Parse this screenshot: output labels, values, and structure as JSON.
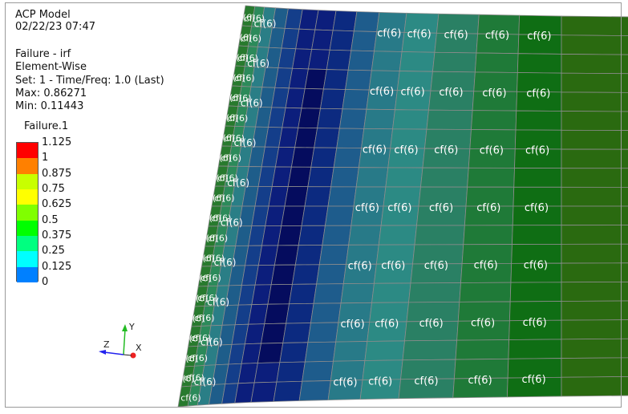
{
  "info": {
    "model": "ACP Model",
    "timestamp": "02/22/23 07:47",
    "result": "Failure - irf",
    "scope": "Element-Wise",
    "set": "Set: 1 - Time/Freq: 1.0 (Last)",
    "max": "Max: 0.86271",
    "min": "Min: 0.11443"
  },
  "legend": {
    "title": "Failure.1",
    "levels": [
      {
        "label": "1.125",
        "color": "#ff0000"
      },
      {
        "label": "1",
        "color": "#ff8000"
      },
      {
        "label": "0.875",
        "color": "#c8ff00"
      },
      {
        "label": "0.75",
        "color": "#ffff00"
      },
      {
        "label": "0.625",
        "color": "#80ff00"
      },
      {
        "label": "0.5",
        "color": "#00ff00"
      },
      {
        "label": "0.375",
        "color": "#00ff80"
      },
      {
        "label": "0.25",
        "color": "#00ffff"
      },
      {
        "label": "0.125",
        "color": "#0080ff"
      },
      {
        "label": "0",
        "color": "#0000ff"
      }
    ]
  },
  "triad": {
    "y": "Y",
    "z": "Z",
    "x": "X",
    "colors": {
      "y": "#22bb22",
      "z": "#2222ee",
      "x": "#ee2222"
    }
  },
  "mesh": {
    "element_label": "cf(6)",
    "grid_line_color": "#8c8c8c",
    "column_colors": [
      "#287a2e",
      "#2c8a5a",
      "#2a7e86",
      "#1e5d8a",
      "#143e8a",
      "#0c1e7c",
      "#050c5e",
      "#0c2a80",
      "#1e5c8c",
      "#287a88",
      "#2c8a84",
      "#2a8064",
      "#1f7a38",
      "#0f6e14",
      "#2a6a10"
    ]
  }
}
